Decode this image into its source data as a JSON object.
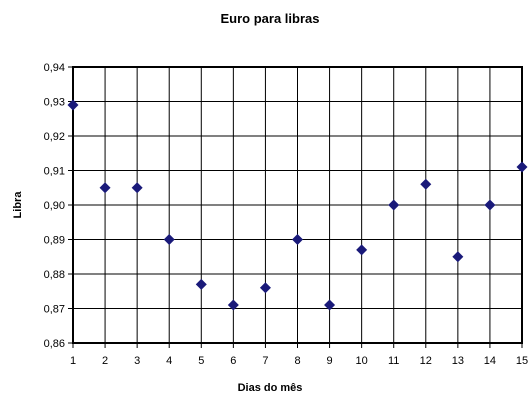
{
  "chart_data": {
    "type": "scatter",
    "title": "Euro para libras",
    "xlabel": "Dias do mês",
    "ylabel": "Libra",
    "x": [
      1,
      2,
      3,
      4,
      5,
      6,
      7,
      8,
      9,
      10,
      11,
      12,
      13,
      14,
      15
    ],
    "y": [
      0.929,
      0.905,
      0.905,
      0.89,
      0.877,
      0.871,
      0.876,
      0.89,
      0.871,
      0.887,
      0.9,
      0.906,
      0.885,
      0.9,
      0.911
    ],
    "xlim": [
      1,
      15
    ],
    "ylim": [
      0.86,
      0.94
    ],
    "x_ticks": [
      "1",
      "2",
      "3",
      "4",
      "5",
      "6",
      "7",
      "8",
      "9",
      "10",
      "11",
      "12",
      "13",
      "14",
      "15"
    ],
    "y_ticks": [
      "0,86",
      "0,87",
      "0,88",
      "0,89",
      "0,90",
      "0,91",
      "0,92",
      "0,93",
      "0,94"
    ],
    "grid": true,
    "marker": "diamond",
    "marker_color": "#1a1a7a"
  }
}
